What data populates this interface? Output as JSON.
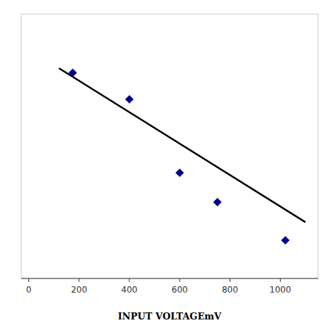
{
  "chart_data": {
    "type": "scatter",
    "xlabel": "INPUT VOLTAGEmV",
    "xlim": [
      -30,
      1150
    ],
    "ylim": [
      -3.5,
      5.5
    ],
    "xticks": [
      0,
      200,
      400,
      600,
      800,
      1000
    ],
    "tick_labels": "x",
    "grid": false,
    "series": [
      {
        "type": "scatter",
        "marker": "diamond",
        "color": "#00008B",
        "x": [
          175,
          400,
          600,
          750,
          1020
        ],
        "values": [
          3.5,
          2.6,
          0.1,
          -0.9,
          -2.2
        ]
      },
      {
        "type": "line",
        "line_style": "solid",
        "color": "#000000",
        "x": [
          120,
          1100
        ],
        "values": [
          3.658,
          -1.585
        ]
      }
    ]
  }
}
